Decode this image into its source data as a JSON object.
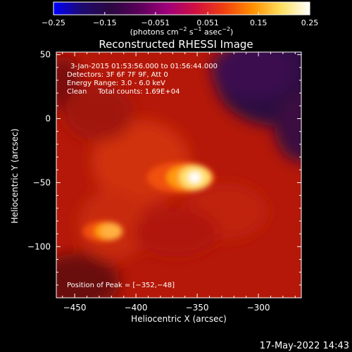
{
  "chart_data": {
    "type": "heatmap",
    "title": "Reconstructed RHESSI Image",
    "xlabel": "Heliocentric X (arcsec)",
    "ylabel": "Heliocentric Y (arcsec)",
    "xlim": [
      -465,
      -265
    ],
    "ylim": [
      -140,
      52
    ],
    "xticks": [
      -450,
      -400,
      -350,
      -300
    ],
    "yticks": [
      50,
      0,
      -50,
      -100
    ],
    "xtick_labels": [
      "−450",
      "−400",
      "−350",
      "−300"
    ],
    "ytick_labels": [
      "50",
      "0",
      "−50",
      "−100"
    ],
    "colorbar": {
      "min": -0.25,
      "max": 0.25,
      "ticks": [
        -0.25,
        -0.15,
        -0.051,
        0.051,
        0.15,
        0.25
      ],
      "tick_labels": [
        "−0.25",
        "−0.15",
        "−0.051",
        "0.051",
        "0.15",
        "0.25"
      ],
      "unit_label": "(photons cm",
      "unit_exp1": "−2",
      "unit_mid": " s",
      "unit_exp2": "−1",
      "unit_mid2": " asec",
      "unit_exp3": "−2",
      "unit_end": ")",
      "colors": [
        "#0000ff",
        "#1e0a6e",
        "#2a0840",
        "#5a005a",
        "#a0007a",
        "#d01040",
        "#f04010",
        "#ff9000",
        "#ffe060",
        "#ffffff"
      ]
    },
    "annotations": {
      "time_range": "3-Jan-2015 01:53:56.000 to 01:56:44.000",
      "detectors": "Detectors: 3F 6F 7F 9F, Att 0",
      "energy": "Energy Range: 3.0 - 6.0 keV",
      "clean": "Clean     Total counts: 1.69E+04",
      "peak": "Position of Peak = [−352,−48]"
    },
    "peak": {
      "x": -352,
      "y": -48
    },
    "sources": [
      {
        "x": -352,
        "y": -46,
        "intensity": 0.25
      },
      {
        "x": -420,
        "y": -88,
        "intensity": 0.15
      }
    ]
  },
  "footer_date": "17-May-2022 14:43"
}
